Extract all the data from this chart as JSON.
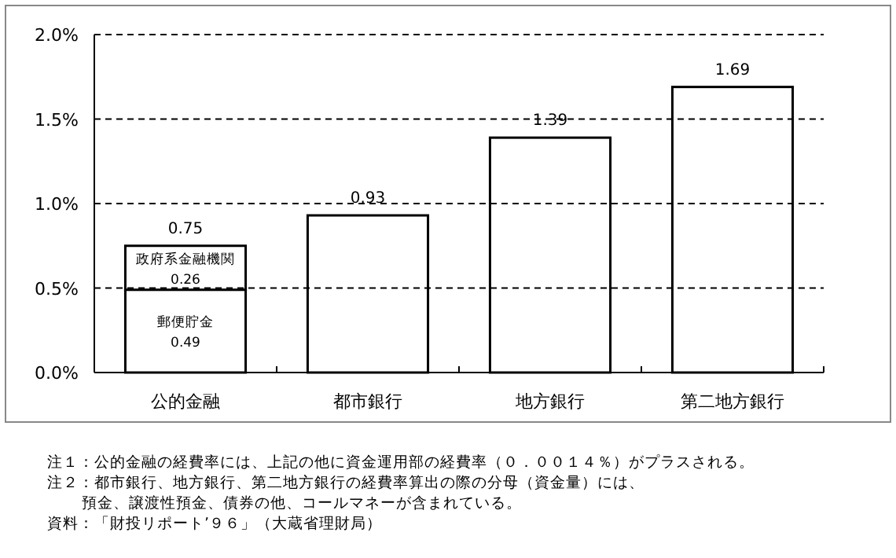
{
  "chart_data": {
    "type": "bar",
    "stacked": true,
    "categories": [
      "公的金融",
      "都市銀行",
      "地方銀行",
      "第二地方銀行"
    ],
    "series": [
      {
        "name": "郵便貯金",
        "color": "#ffffff",
        "values": [
          0.49,
          null,
          null,
          null
        ],
        "value_labels": [
          "0.49",
          null,
          null,
          null
        ]
      },
      {
        "name": "政府系金融機関",
        "color": "#ffffff",
        "values": [
          0.26,
          null,
          null,
          null
        ],
        "value_labels": [
          "0.26",
          null,
          null,
          null
        ]
      },
      {
        "color": "#ffffff",
        "values": [
          null,
          0.93,
          1.39,
          1.69
        ]
      }
    ],
    "totals": [
      "0.75",
      "0.93",
      "1.39",
      "1.69"
    ],
    "ylim": [
      0,
      2.0
    ],
    "yticks": [
      {
        "value": 0,
        "label": "0.0%"
      },
      {
        "value": 0.5,
        "label": "0.5%"
      },
      {
        "value": 1.0,
        "label": "1.0%"
      },
      {
        "value": 1.5,
        "label": "1.5%"
      },
      {
        "value": 2.0,
        "label": "2.0%"
      }
    ],
    "grid": "y",
    "annotations": [
      "注１：公的金融の経費率には、上記の他に資金運用部の経費率（０．００１４％）がプラスされる。",
      "注２：都市銀行、地方銀行、第二地方銀行の経費率算出の際の分母（資金量）には、",
      "預金、譲渡性預金、債券の他、コールマネーが含まれている。",
      "資料：「財投リポート’９６」（大蔵省理財局）"
    ]
  }
}
